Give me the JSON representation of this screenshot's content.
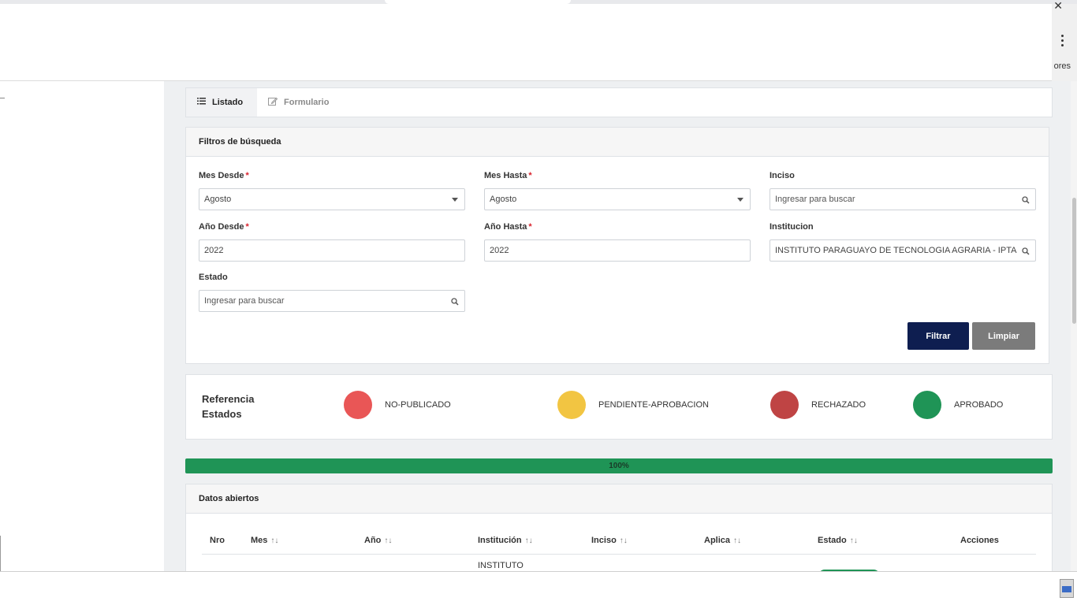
{
  "header": {
    "ext_text": "ores"
  },
  "tabs": [
    {
      "label": "Listado",
      "icon": "list-icon",
      "active": true
    },
    {
      "label": "Formulario",
      "icon": "edit-icon",
      "active": false
    }
  ],
  "filters": {
    "title": "Filtros de búsqueda",
    "mes_desde": {
      "label": "Mes Desde",
      "value": "Agosto"
    },
    "mes_hasta": {
      "label": "Mes Hasta",
      "value": "Agosto"
    },
    "inciso": {
      "label": "Inciso",
      "placeholder": "Ingresar para buscar"
    },
    "anio_desde": {
      "label": "Año Desde",
      "value": "2022"
    },
    "anio_hasta": {
      "label": "Año Hasta",
      "value": "2022"
    },
    "institucion": {
      "label": "Institucion",
      "value": "INSTITUTO PARAGUAYO DE TECNOLOGIA AGRARIA - IPTA"
    },
    "estado": {
      "label": "Estado",
      "placeholder": "Ingresar para buscar"
    },
    "required_mark": "*",
    "filter_button": "Filtrar",
    "clear_button": "Limpiar"
  },
  "legend": {
    "title_line1": "Referencia",
    "title_line2": "Estados",
    "items": [
      {
        "label": "NO-PUBLICADO",
        "color": "#e95656"
      },
      {
        "label": "PENDIENTE-APROBACION",
        "color": "#f2c542"
      },
      {
        "label": "RECHAZADO",
        "color": "#bf4444"
      },
      {
        "label": "APROBADO",
        "color": "#1f9456"
      }
    ]
  },
  "progress": {
    "value": 100,
    "label": "100%"
  },
  "datos": {
    "title": "Datos abiertos",
    "columns": [
      {
        "label": "Nro",
        "sortable": false
      },
      {
        "label": "Mes",
        "sortable": true
      },
      {
        "label": "Año",
        "sortable": true
      },
      {
        "label": "Institución",
        "sortable": true
      },
      {
        "label": "Inciso",
        "sortable": true
      },
      {
        "label": "Aplica",
        "sortable": true
      },
      {
        "label": "Estado",
        "sortable": true
      },
      {
        "label": "Acciones",
        "sortable": false
      }
    ],
    "sort_glyph": "↑↓",
    "first_row_institution": "INSTITUTO"
  }
}
